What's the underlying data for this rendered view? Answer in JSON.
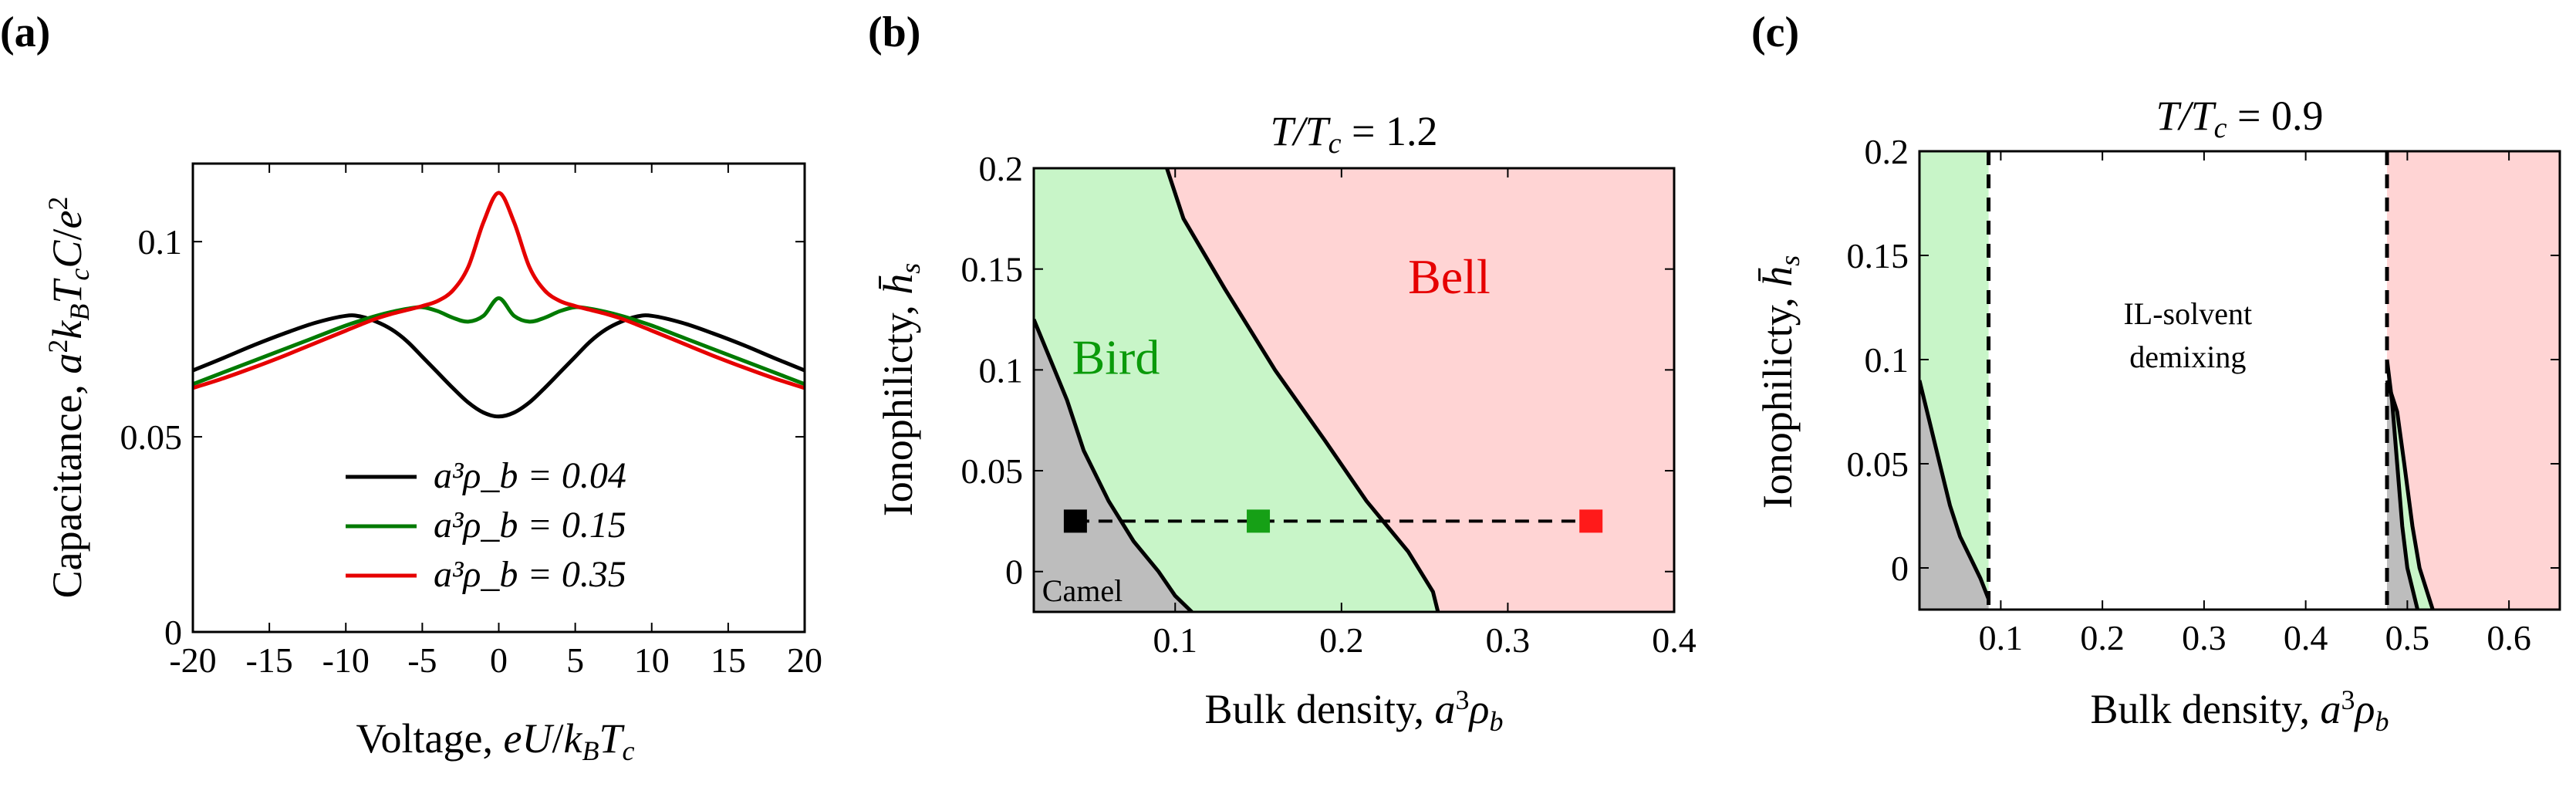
{
  "panels": {
    "a": {
      "label": "(a)"
    },
    "b": {
      "label": "(b)"
    },
    "c": {
      "label": "(c)"
    }
  },
  "chart_data": [
    {
      "type": "line",
      "panel": "(a)",
      "title": "",
      "xlabel": "Voltage, eU/k_BT_c",
      "ylabel": "Capacitance, a²k_BT_cC/e²",
      "xlim": [
        -20,
        20
      ],
      "ylim": [
        0,
        0.12
      ],
      "xticks": [
        "-20",
        "-15",
        "-10",
        "-5",
        "0",
        "5",
        "10",
        "15",
        "20"
      ],
      "yticks": [
        "0",
        "0.05",
        "0.1"
      ],
      "legend_position": "lower-center",
      "x": [
        -20,
        -18,
        -16,
        -14,
        -12,
        -10,
        -9,
        -8,
        -7,
        -6,
        -5,
        -4,
        -3,
        -2,
        -1,
        0,
        1,
        2,
        3,
        4,
        5,
        6,
        7,
        8,
        9,
        10,
        12,
        14,
        16,
        18,
        20
      ],
      "series": [
        {
          "name": "a³ρ_b = 0.04",
          "color": "#000000",
          "values": [
            0.067,
            0.0702,
            0.0735,
            0.0765,
            0.0792,
            0.081,
            0.0808,
            0.0795,
            0.0775,
            0.0745,
            0.0705,
            0.0665,
            0.0625,
            0.0588,
            0.0562,
            0.0552,
            0.0562,
            0.0588,
            0.0625,
            0.0665,
            0.0705,
            0.0745,
            0.0775,
            0.0795,
            0.0808,
            0.081,
            0.0792,
            0.0765,
            0.0735,
            0.0702,
            0.067
          ]
        },
        {
          "name": "a³ρ_b = 0.15",
          "color": "#007a00",
          "values": [
            0.0635,
            0.0665,
            0.0695,
            0.0725,
            0.0755,
            0.0785,
            0.0798,
            0.081,
            0.082,
            0.0828,
            0.0832,
            0.0822,
            0.0805,
            0.0795,
            0.081,
            0.0855,
            0.081,
            0.0795,
            0.0805,
            0.0822,
            0.0832,
            0.0828,
            0.082,
            0.081,
            0.0798,
            0.0785,
            0.0755,
            0.0725,
            0.0695,
            0.0665,
            0.0635
          ]
        },
        {
          "name": "a³ρ_b = 0.35",
          "color": "#e60000",
          "values": [
            0.0625,
            0.065,
            0.0678,
            0.0708,
            0.074,
            0.0772,
            0.0788,
            0.0803,
            0.0815,
            0.0825,
            0.0835,
            0.0848,
            0.0875,
            0.0935,
            0.105,
            0.1125,
            0.105,
            0.0935,
            0.0875,
            0.0848,
            0.0835,
            0.0825,
            0.0815,
            0.0803,
            0.0788,
            0.0772,
            0.074,
            0.0708,
            0.0678,
            0.065,
            0.0625
          ]
        }
      ]
    },
    {
      "type": "area",
      "panel": "(b)",
      "title": "T/T_c = 1.2",
      "xlabel": "Bulk density, a³ρ_b",
      "ylabel": "Ionophilicty, h̄_s",
      "xlim": [
        0.015,
        0.4
      ],
      "ylim": [
        -0.02,
        0.2
      ],
      "xticks": [
        "0.1",
        "0.2",
        "0.3",
        "0.4"
      ],
      "yticks": [
        "0",
        "0.05",
        "0.1",
        "0.15",
        "0.2"
      ],
      "regions": [
        {
          "name": "Camel",
          "color": "#bdbdbd"
        },
        {
          "name": "Bird",
          "color": "#c8f5c8"
        },
        {
          "name": "Bell",
          "color": "#ffd4d4"
        }
      ],
      "boundaries": [
        {
          "name": "camel-bird",
          "points": [
            [
              0.015,
              0.125
            ],
            [
              0.025,
              0.105
            ],
            [
              0.035,
              0.085
            ],
            [
              0.045,
              0.06
            ],
            [
              0.06,
              0.035
            ],
            [
              0.075,
              0.015
            ],
            [
              0.09,
              0.0
            ],
            [
              0.1,
              -0.012
            ],
            [
              0.11,
              -0.02
            ]
          ]
        },
        {
          "name": "bird-bell",
          "points": [
            [
              0.095,
              0.2
            ],
            [
              0.105,
              0.175
            ],
            [
              0.13,
              0.14
            ],
            [
              0.16,
              0.1
            ],
            [
              0.19,
              0.065
            ],
            [
              0.215,
              0.035
            ],
            [
              0.24,
              0.01
            ],
            [
              0.255,
              -0.01
            ],
            [
              0.258,
              -0.02
            ]
          ]
        }
      ],
      "dashed_line": {
        "x": [
          0.04,
          0.35
        ],
        "y": 0.025
      },
      "markers": [
        {
          "x": 0.04,
          "y": 0.025,
          "color": "#000000"
        },
        {
          "x": 0.15,
          "y": 0.025,
          "color": "#16a016"
        },
        {
          "x": 0.35,
          "y": 0.025,
          "color": "#ff1a1a"
        }
      ],
      "labels": {
        "camel": "Camel",
        "bird": "Bird",
        "bell": "Bell"
      }
    },
    {
      "type": "area",
      "panel": "(c)",
      "title": "T/T_c = 0.9",
      "xlabel": "Bulk density, a³ρ_b",
      "ylabel": "Ionophilicty, h̄_s",
      "xlim": [
        0.02,
        0.65
      ],
      "ylim": [
        -0.02,
        0.2
      ],
      "xticks": [
        "0.1",
        "0.2",
        "0.3",
        "0.4",
        "0.5",
        "0.6"
      ],
      "yticks": [
        "0",
        "0.05",
        "0.1",
        "0.15",
        "0.2"
      ],
      "regions": [
        {
          "name": "Camel",
          "color": "#bdbdbd"
        },
        {
          "name": "Bird",
          "color": "#c8f5c8"
        },
        {
          "name": "IL-solvent demixing",
          "color": "#ffffff"
        },
        {
          "name": "Bell",
          "color": "#ffd4d4"
        }
      ],
      "demixing_bounds": [
        0.088,
        0.48
      ],
      "boundaries": [
        {
          "name": "left-camel-bird",
          "points": [
            [
              0.02,
              0.09
            ],
            [
              0.03,
              0.07
            ],
            [
              0.04,
              0.05
            ],
            [
              0.05,
              0.03
            ],
            [
              0.06,
              0.015
            ],
            [
              0.07,
              0.005
            ],
            [
              0.08,
              -0.005
            ],
            [
              0.088,
              -0.015
            ]
          ]
        },
        {
          "name": "right-camel-bird",
          "points": [
            [
              0.48,
              0.1
            ],
            [
              0.485,
              0.08
            ],
            [
              0.49,
              0.05
            ],
            [
              0.495,
              0.02
            ],
            [
              0.5,
              0.0
            ],
            [
              0.51,
              -0.02
            ]
          ]
        },
        {
          "name": "right-bird-bell",
          "points": [
            [
              0.48,
              0.09
            ],
            [
              0.49,
              0.075
            ],
            [
              0.497,
              0.05
            ],
            [
              0.505,
              0.02
            ],
            [
              0.512,
              0.0
            ],
            [
              0.525,
              -0.02
            ]
          ]
        }
      ],
      "labels": {
        "demixing_line1": "IL-solvent",
        "demixing_line2": "demixing"
      }
    }
  ]
}
